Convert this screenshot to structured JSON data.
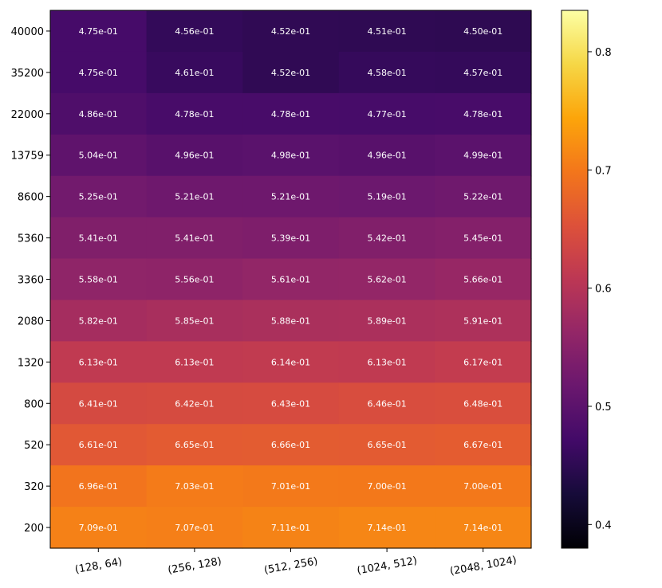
{
  "chart_data": {
    "type": "heatmap",
    "title": "",
    "xlabel": "",
    "ylabel": "",
    "x_categories": [
      "(128, 64)",
      "(256, 128)",
      "(512, 256)",
      "(1024, 512)",
      "(2048, 1024)"
    ],
    "y_categories": [
      "40000",
      "35200",
      "22000",
      "13759",
      "8600",
      "5360",
      "3360",
      "2080",
      "1320",
      "800",
      "520",
      "320",
      "200"
    ],
    "values": [
      [
        0.475,
        0.456,
        0.452,
        0.451,
        0.45
      ],
      [
        0.475,
        0.461,
        0.452,
        0.458,
        0.457
      ],
      [
        0.486,
        0.478,
        0.478,
        0.477,
        0.478
      ],
      [
        0.504,
        0.496,
        0.498,
        0.496,
        0.499
      ],
      [
        0.525,
        0.521,
        0.521,
        0.519,
        0.522
      ],
      [
        0.541,
        0.541,
        0.539,
        0.542,
        0.545
      ],
      [
        0.558,
        0.556,
        0.561,
        0.562,
        0.566
      ],
      [
        0.582,
        0.585,
        0.588,
        0.589,
        0.591
      ],
      [
        0.613,
        0.613,
        0.614,
        0.613,
        0.617
      ],
      [
        0.641,
        0.642,
        0.643,
        0.646,
        0.648
      ],
      [
        0.661,
        0.665,
        0.666,
        0.665,
        0.667
      ],
      [
        0.696,
        0.703,
        0.701,
        0.7,
        0.7
      ],
      [
        0.709,
        0.707,
        0.711,
        0.714,
        0.714
      ]
    ],
    "cell_labels": [
      [
        "4.75e-01",
        "4.56e-01",
        "4.52e-01",
        "4.51e-01",
        "4.50e-01"
      ],
      [
        "4.75e-01",
        "4.61e-01",
        "4.52e-01",
        "4.58e-01",
        "4.57e-01"
      ],
      [
        "4.86e-01",
        "4.78e-01",
        "4.78e-01",
        "4.77e-01",
        "4.78e-01"
      ],
      [
        "5.04e-01",
        "4.96e-01",
        "4.98e-01",
        "4.96e-01",
        "4.99e-01"
      ],
      [
        "5.25e-01",
        "5.21e-01",
        "5.21e-01",
        "5.19e-01",
        "5.22e-01"
      ],
      [
        "5.41e-01",
        "5.41e-01",
        "5.39e-01",
        "5.42e-01",
        "5.45e-01"
      ],
      [
        "5.58e-01",
        "5.56e-01",
        "5.61e-01",
        "5.62e-01",
        "5.66e-01"
      ],
      [
        "5.82e-01",
        "5.85e-01",
        "5.88e-01",
        "5.89e-01",
        "5.91e-01"
      ],
      [
        "6.13e-01",
        "6.13e-01",
        "6.14e-01",
        "6.13e-01",
        "6.17e-01"
      ],
      [
        "6.41e-01",
        "6.42e-01",
        "6.43e-01",
        "6.46e-01",
        "6.48e-01"
      ],
      [
        "6.61e-01",
        "6.65e-01",
        "6.66e-01",
        "6.65e-01",
        "6.67e-01"
      ],
      [
        "6.96e-01",
        "7.03e-01",
        "7.01e-01",
        "7.00e-01",
        "7.00e-01"
      ],
      [
        "7.09e-01",
        "7.07e-01",
        "7.11e-01",
        "7.14e-01",
        "7.14e-01"
      ]
    ],
    "colormap": "inferno",
    "colorbar": {
      "min": 0.38,
      "max": 0.835,
      "ticks": [
        0.4,
        0.5,
        0.6,
        0.7,
        0.8
      ],
      "tick_labels": [
        "0.4",
        "0.5",
        "0.6",
        "0.7",
        "0.8"
      ]
    },
    "cell_label_color": "#ffffff",
    "x_tick_rotation_deg": -10
  }
}
